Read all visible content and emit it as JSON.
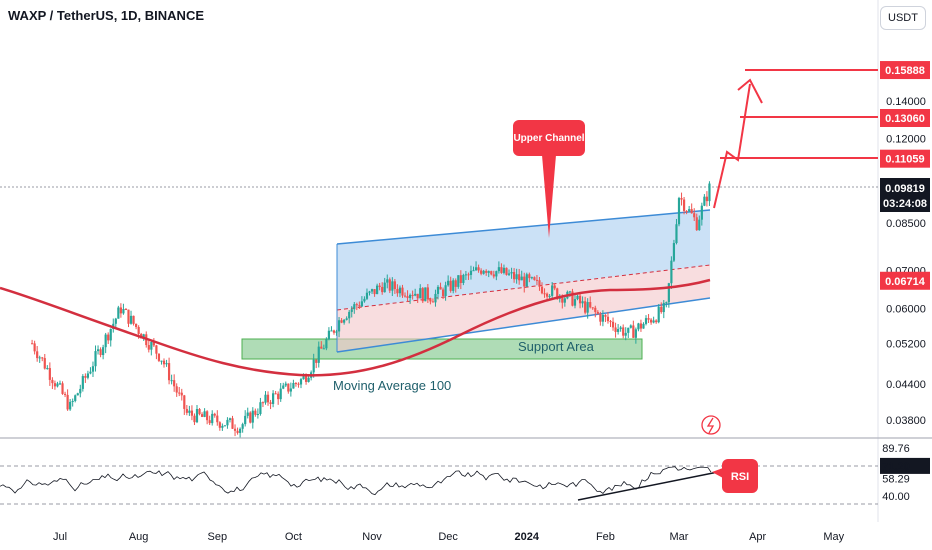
{
  "header": {
    "title": "WAXP / TetherUS, 1D, BINANCE",
    "currency_button": "USDT"
  },
  "colors": {
    "up": "#26a69a",
    "down": "#ef5350",
    "ma": "#d32f3f",
    "channel": "#3d8bd6",
    "support": "#6dc07a",
    "annot": "#f23645",
    "rsi": "#7e57c2"
  },
  "chart_data": {
    "type": "candlestick",
    "title": "WAXP / TetherUS, 1D, BINANCE",
    "x_tick_labels": [
      "Jul",
      "Aug",
      "Sep",
      "Oct",
      "Nov",
      "Dec",
      "2024",
      "Feb",
      "Mar",
      "Apr",
      "May"
    ],
    "y_tick_labels": [
      "0.14000",
      "0.12000",
      "0.08500",
      "0.07000",
      "0.06000",
      "0.05200",
      "0.04400",
      "0.03800"
    ],
    "y_ticks": [
      0.14,
      0.12,
      0.085,
      0.07,
      0.06,
      0.052,
      0.044,
      0.038
    ],
    "price_tags": [
      {
        "label": "0.15888",
        "value": 0.15888,
        "color": "#f23645"
      },
      {
        "label": "0.13060",
        "value": 0.1306,
        "color": "#f23645"
      },
      {
        "label": "0.11059",
        "value": 0.11059,
        "color": "#f23645"
      },
      {
        "label": "0.06714",
        "value": 0.06714,
        "color": "#f23645"
      }
    ],
    "last_price": {
      "label": "0.09819",
      "countdown": "03:24:08",
      "value": 0.09819
    },
    "ohlc_key_points": [
      [
        "2023-06-20",
        0.052
      ],
      [
        "2023-07-05",
        0.04
      ],
      [
        "2023-07-25",
        0.06
      ],
      [
        "2023-08-10",
        0.049
      ],
      [
        "2023-08-20",
        0.039
      ],
      [
        "2023-09-10",
        0.037
      ],
      [
        "2023-09-20",
        0.041
      ],
      [
        "2023-10-05",
        0.045
      ],
      [
        "2023-10-20",
        0.058
      ],
      [
        "2023-11-05",
        0.066
      ],
      [
        "2023-11-25",
        0.063
      ],
      [
        "2023-12-15",
        0.071
      ],
      [
        "2024-01-01",
        0.067
      ],
      [
        "2024-01-20",
        0.062
      ],
      [
        "2024-02-10",
        0.054
      ],
      [
        "2024-02-25",
        0.06
      ],
      [
        "2024-03-01",
        0.095
      ],
      [
        "2024-03-08",
        0.085
      ],
      [
        "2024-03-13",
        0.098
      ]
    ],
    "moving_average_100": [
      [
        "2023-06-20",
        0.058
      ],
      [
        "2023-08-01",
        0.05
      ],
      [
        "2023-09-01",
        0.045
      ],
      [
        "2023-10-01",
        0.044
      ],
      [
        "2023-11-01",
        0.047
      ],
      [
        "2023-12-01",
        0.055
      ],
      [
        "2024-01-01",
        0.06
      ],
      [
        "2024-02-01",
        0.06
      ],
      [
        "2024-03-01",
        0.063
      ],
      [
        "2024-03-13",
        0.067
      ]
    ],
    "rsi": {
      "levels": [
        {
          "label": "89.76",
          "value": 89.76
        },
        {
          "label": "71.20",
          "value": 71.2
        },
        {
          "label": "58.29",
          "value": 58.29
        },
        {
          "label": "40.00",
          "value": 40.0
        }
      ]
    },
    "annotations": {
      "upper_channel": "Upper Channel",
      "support_area": "Support Area",
      "moving_average": "Moving Average 100",
      "rsi": "RSI"
    }
  }
}
